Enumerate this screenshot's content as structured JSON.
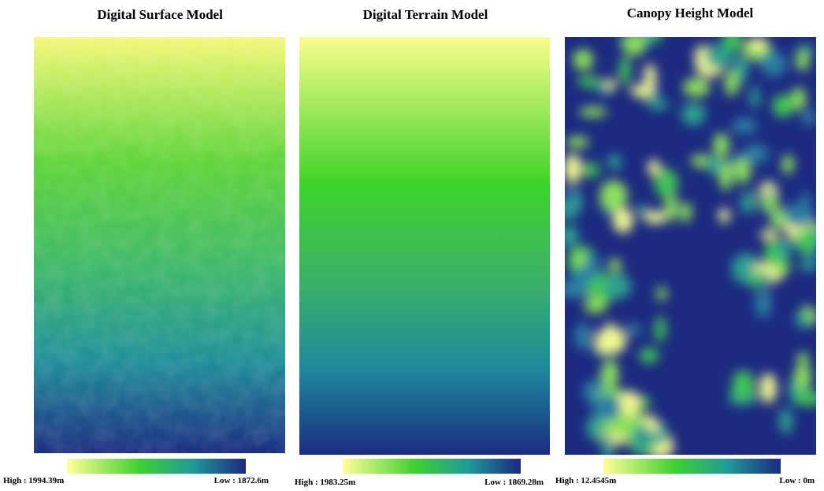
{
  "panels": [
    {
      "title": "Digital Surface Model",
      "legend": {
        "high": "High : 1994.39m",
        "low": "Low : 1872.6m"
      }
    },
    {
      "title": "Digital Terrain Model",
      "legend": {
        "high": "High : 1983.25m",
        "low": "Low : 1869.28m"
      }
    },
    {
      "title": "Canopy Height Model",
      "legend": {
        "high": "High : 12.4545m",
        "low": "Low : 0m"
      }
    }
  ]
}
